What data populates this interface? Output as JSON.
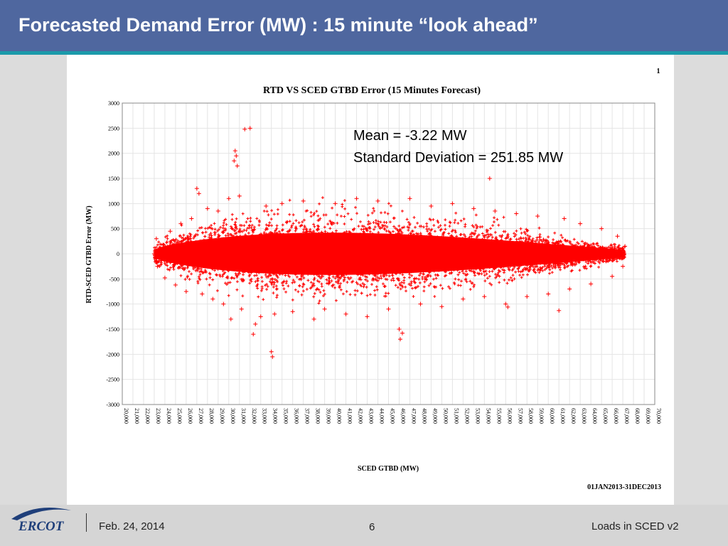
{
  "slide": {
    "title": "Forecasted Demand Error (MW) : 15 minute “look ahead”",
    "corner_number": "1",
    "date_range": "01JAN2013-31DEC2013"
  },
  "footer": {
    "logo_text": "ERCOT",
    "date": "Feb. 24, 2014",
    "page": "6",
    "deck_title": "Loads in SCED v2"
  },
  "colors": {
    "header": "#4f679f",
    "accent": "#1b9aaa",
    "points": "#ff0000",
    "logo": "#1f3f7a"
  },
  "chart_data": {
    "type": "scatter",
    "title": "RTD VS SCED GTBD Error (15 Minutes Forecast)",
    "xlabel": "SCED GTBD (MW)",
    "ylabel": "RTD-SCED GTBD Error (MW)",
    "xlim": [
      20000,
      70000
    ],
    "ylim": [
      -3000,
      3000
    ],
    "x_ticks": [
      "20,000",
      "21,000",
      "22,000",
      "23,000",
      "24,000",
      "25,000",
      "26,000",
      "27,000",
      "28,000",
      "29,000",
      "30,000",
      "31,000",
      "32,000",
      "33,000",
      "34,000",
      "35,000",
      "36,000",
      "37,000",
      "38,000",
      "39,000",
      "40,000",
      "41,000",
      "42,000",
      "43,000",
      "44,000",
      "45,000",
      "46,000",
      "47,000",
      "48,000",
      "49,000",
      "50,000",
      "51,000",
      "52,000",
      "53,000",
      "54,000",
      "55,000",
      "56,000",
      "57,000",
      "58,000",
      "59,000",
      "60,000",
      "61,000",
      "62,000",
      "63,000",
      "64,000",
      "65,000",
      "66,000",
      "67,000",
      "68,000",
      "69,000",
      "70,000"
    ],
    "y_ticks": [
      "3000",
      "2500",
      "2000",
      "1500",
      "1000",
      "500",
      "0",
      "-500",
      "-1000",
      "-1500",
      "-2000",
      "-2500",
      "-3000"
    ],
    "grid": true,
    "marker": "+",
    "series": [
      {
        "color": "#ff0000",
        "points": [
          [
            23000,
            0
          ],
          [
            23200,
            300
          ],
          [
            23300,
            -250
          ],
          [
            24000,
            -480
          ],
          [
            24500,
            450
          ],
          [
            25000,
            -620
          ],
          [
            25500,
            600
          ],
          [
            26000,
            -750
          ],
          [
            26500,
            700
          ],
          [
            27000,
            1300
          ],
          [
            27200,
            1200
          ],
          [
            27500,
            -800
          ],
          [
            28000,
            900
          ],
          [
            28500,
            -900
          ],
          [
            29000,
            850
          ],
          [
            29500,
            -1000
          ],
          [
            30000,
            1100
          ],
          [
            30200,
            -1300
          ],
          [
            30500,
            1850
          ],
          [
            30600,
            2050
          ],
          [
            30700,
            1950
          ],
          [
            30800,
            1750
          ],
          [
            31000,
            1150
          ],
          [
            31200,
            -1100
          ],
          [
            31500,
            2480
          ],
          [
            32000,
            2500
          ],
          [
            32300,
            -1600
          ],
          [
            32500,
            -1400
          ],
          [
            33000,
            -1250
          ],
          [
            33500,
            950
          ],
          [
            34000,
            -1950
          ],
          [
            34100,
            -2050
          ],
          [
            34300,
            -1200
          ],
          [
            35000,
            1000
          ],
          [
            36000,
            -1150
          ],
          [
            37000,
            1050
          ],
          [
            38000,
            -1300
          ],
          [
            39000,
            -1100
          ],
          [
            40000,
            1000
          ],
          [
            41000,
            -1200
          ],
          [
            42000,
            1100
          ],
          [
            43000,
            -1250
          ],
          [
            44000,
            1050
          ],
          [
            45000,
            -1100
          ],
          [
            46000,
            -1500
          ],
          [
            46100,
            -1700
          ],
          [
            46300,
            -1580
          ],
          [
            47000,
            1100
          ],
          [
            48000,
            -1000
          ],
          [
            49000,
            950
          ],
          [
            50000,
            -1050
          ],
          [
            51000,
            1000
          ],
          [
            52000,
            -900
          ],
          [
            53000,
            900
          ],
          [
            54000,
            -850
          ],
          [
            54500,
            1500
          ],
          [
            55000,
            850
          ],
          [
            56000,
            -1000
          ],
          [
            56200,
            -1060
          ],
          [
            57000,
            800
          ],
          [
            58000,
            -850
          ],
          [
            59000,
            750
          ],
          [
            60000,
            -800
          ],
          [
            61000,
            -1130
          ],
          [
            61500,
            700
          ],
          [
            62000,
            -700
          ],
          [
            63000,
            600
          ],
          [
            64000,
            -600
          ],
          [
            65000,
            500
          ],
          [
            66000,
            -450
          ],
          [
            66500,
            350
          ],
          [
            67000,
            -250
          ],
          [
            67200,
            150
          ]
        ]
      }
    ],
    "annotations": [
      "Mean = -3.22 MW",
      "Standard Deviation = 251.85 MW"
    ]
  }
}
